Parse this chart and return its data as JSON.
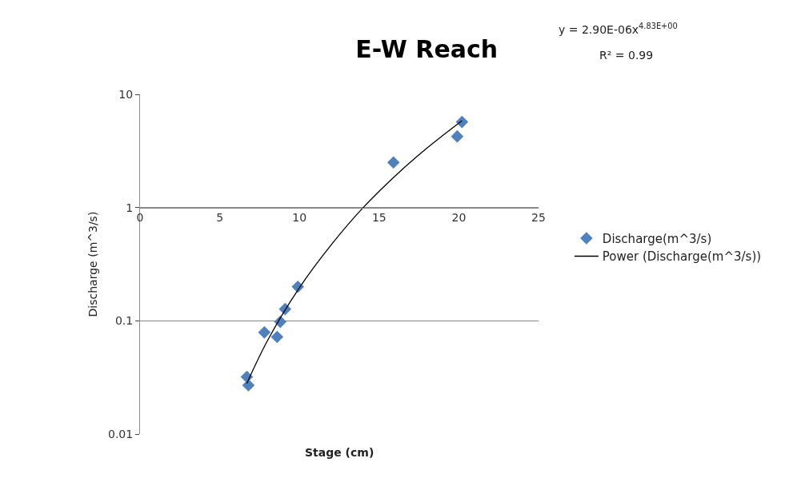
{
  "chart_data": {
    "type": "scatter",
    "title": "E-W Reach",
    "xlabel": "Stage (cm)",
    "ylabel": "Discharge (m^3/s)",
    "series": [
      {
        "name": "Discharge(m^3/s)",
        "color": "#4f81bd",
        "marker": "diamond",
        "x": [
          6.7,
          6.8,
          7.8,
          8.6,
          8.8,
          9.1,
          9.9,
          15.9,
          19.9,
          20.2
        ],
        "values": [
          0.032,
          0.027,
          0.079,
          0.072,
          0.098,
          0.127,
          0.2,
          2.5,
          4.25,
          5.7
        ]
      },
      {
        "name": "Power (Discharge(m^3/s))",
        "type": "line",
        "color": "#000000",
        "marker": "none",
        "line_style": "solid",
        "x": [
          6.7,
          8,
          10,
          12,
          14,
          16,
          18,
          20.2
        ],
        "values": [
          0.028,
          0.067,
          0.196,
          0.47,
          1.0,
          1.9,
          3.35,
          5.85
        ]
      }
    ],
    "xlim": [
      0,
      25
    ],
    "xticks": [
      0,
      5,
      10,
      15,
      20,
      25
    ],
    "ylim": [
      0.01,
      10
    ],
    "yticks": [
      0.01,
      0.1,
      1,
      10
    ],
    "log": "y",
    "grid": "y",
    "legend": "right",
    "annotations": [
      "y = 2.90E-06x$^{4.83E+00}$",
      "R² = 0.99"
    ]
  }
}
